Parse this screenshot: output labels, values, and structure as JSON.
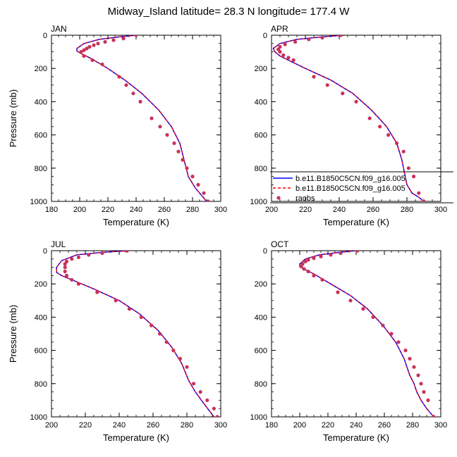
{
  "title": "Midway_Island  latitude= 28.3 N longitude= 177.4 W",
  "legend": {
    "items": [
      {
        "label": "b.e11.B1850C5CN.f09_g16.005",
        "color": "#0000ff",
        "style": "solid"
      },
      {
        "label": "b.e11.B1850C5CN.f09_g16.005",
        "color": "#ff0000",
        "style": "dashed"
      },
      {
        "label": "raobs",
        "color": "#c8325a",
        "style": "marker"
      }
    ]
  },
  "chart_data": [
    {
      "type": "line",
      "panel": "JAN",
      "xlabel": "Temperature (K)",
      "ylabel": "Pressure (mb)",
      "xlim": [
        180,
        300
      ],
      "xticks": [
        "180",
        "200",
        "220",
        "240",
        "260",
        "280",
        "300"
      ],
      "ylim": [
        1000,
        0
      ],
      "yticks": [
        "0",
        "200",
        "400",
        "600",
        "800",
        "1000"
      ],
      "series": [
        {
          "name": "b.e11.B1850C5CN.f09_g16.005",
          "color": "#0000ff",
          "style": "solid",
          "x": [
            240,
            228,
            214,
            203,
            198,
            198,
            201,
            208,
            220,
            232,
            244,
            256,
            265,
            271,
            274,
            277,
            282,
            287,
            290
          ],
          "y": [
            0,
            10,
            25,
            50,
            80,
            95,
            110,
            140,
            200,
            270,
            350,
            450,
            550,
            650,
            750,
            850,
            920,
            970,
            1000
          ]
        },
        {
          "name": "b.e11.B1850C5CN.f09_g16.005",
          "color": "#ff0000",
          "style": "dashed",
          "x": [
            240,
            228,
            214,
            203,
            198,
            198,
            201,
            208,
            220,
            232,
            244,
            256,
            265,
            271,
            274,
            277,
            282,
            287,
            290
          ],
          "y": [
            0,
            10,
            25,
            50,
            80,
            95,
            110,
            140,
            200,
            270,
            350,
            450,
            550,
            650,
            750,
            850,
            920,
            970,
            1000
          ]
        },
        {
          "name": "raobs",
          "color": "#c8325a",
          "style": "marker",
          "x": [
            240,
            231,
            224,
            218,
            213,
            210,
            207,
            205,
            203,
            201,
            203,
            209,
            216,
            228,
            233,
            238,
            243,
            251,
            257,
            262,
            267,
            270,
            273,
            276,
            280,
            284,
            288,
            291
          ],
          "y": [
            0,
            20,
            30,
            40,
            50,
            60,
            70,
            80,
            90,
            100,
            125,
            150,
            175,
            250,
            300,
            350,
            400,
            500,
            550,
            600,
            650,
            700,
            750,
            800,
            850,
            900,
            950,
            1000
          ]
        }
      ]
    },
    {
      "type": "line",
      "panel": "APR",
      "xlabel": "Temperature (K)",
      "ylabel": "",
      "xlim": [
        200,
        300
      ],
      "xticks": [
        "200",
        "220",
        "240",
        "260",
        "280",
        "300"
      ],
      "ylim": [
        1000,
        0
      ],
      "yticks": [
        "0",
        "200",
        "400",
        "600",
        "800",
        "1000"
      ],
      "series": [
        {
          "name": "b.e11.B1850C5CN.f09_g16.005",
          "color": "#0000ff",
          "style": "solid",
          "x": [
            243,
            230,
            215,
            205,
            201,
            202,
            205,
            210,
            220,
            235,
            248,
            259,
            268,
            274,
            277,
            279,
            280,
            283,
            287,
            290
          ],
          "y": [
            0,
            10,
            25,
            50,
            80,
            100,
            125,
            150,
            200,
            270,
            350,
            450,
            550,
            650,
            750,
            850,
            900,
            950,
            975,
            1000
          ]
        },
        {
          "name": "b.e11.B1850C5CN.f09_g16.005",
          "color": "#ff0000",
          "style": "dashed",
          "x": [
            243,
            230,
            215,
            205,
            201,
            202,
            205,
            210,
            220,
            235,
            248,
            259,
            268,
            274,
            277,
            279,
            280,
            283,
            287,
            290
          ],
          "y": [
            0,
            10,
            25,
            50,
            80,
            100,
            125,
            150,
            200,
            270,
            350,
            450,
            550,
            650,
            750,
            850,
            900,
            950,
            975,
            1000
          ]
        },
        {
          "name": "raobs",
          "color": "#c8325a",
          "style": "marker",
          "x": [
            241,
            230,
            222,
            214,
            208,
            205,
            204,
            205,
            207,
            210,
            213,
            225,
            233,
            242,
            250,
            258,
            264,
            269,
            274,
            278,
            281,
            284,
            287,
            290
          ],
          "y": [
            0,
            15,
            25,
            40,
            55,
            70,
            85,
            100,
            120,
            135,
            150,
            250,
            300,
            350,
            400,
            500,
            550,
            600,
            650,
            700,
            800,
            850,
            950,
            1000
          ]
        }
      ]
    },
    {
      "type": "line",
      "panel": "JUL",
      "xlabel": "Temperature (K)",
      "ylabel": "Pressure (mb)",
      "xlim": [
        200,
        300
      ],
      "xticks": [
        "200",
        "220",
        "240",
        "260",
        "280",
        "300"
      ],
      "ylim": [
        1000,
        0
      ],
      "yticks": [
        "0",
        "200",
        "400",
        "600",
        "800",
        "1000"
      ],
      "series": [
        {
          "name": "b.e11.B1850C5CN.f09_g16.005",
          "color": "#0000ff",
          "style": "solid",
          "x": [
            246,
            230,
            215,
            206,
            203,
            203,
            206,
            212,
            225,
            240,
            252,
            263,
            271,
            277,
            281,
            285,
            290,
            296
          ],
          "y": [
            0,
            10,
            25,
            60,
            100,
            130,
            150,
            175,
            230,
            300,
            380,
            480,
            580,
            680,
            780,
            850,
            920,
            1000
          ]
        },
        {
          "name": "b.e11.B1850C5CN.f09_g16.005",
          "color": "#ff0000",
          "style": "dashed",
          "x": [
            246,
            230,
            215,
            206,
            203,
            203,
            206,
            212,
            225,
            240,
            252,
            263,
            271,
            277,
            281,
            285,
            290,
            296
          ],
          "y": [
            0,
            10,
            25,
            60,
            100,
            130,
            150,
            175,
            230,
            300,
            380,
            480,
            580,
            680,
            780,
            850,
            920,
            1000
          ]
        },
        {
          "name": "raobs",
          "color": "#c8325a",
          "style": "marker",
          "x": [
            244,
            230,
            222,
            216,
            212,
            209,
            208,
            208,
            208,
            209,
            212,
            216,
            227,
            238,
            246,
            253,
            259,
            264,
            268,
            272,
            276,
            280,
            284,
            288,
            292,
            296,
            298
          ],
          "y": [
            0,
            15,
            25,
            40,
            50,
            65,
            80,
            100,
            125,
            150,
            175,
            200,
            250,
            300,
            350,
            400,
            450,
            500,
            550,
            600,
            650,
            700,
            800,
            850,
            900,
            950,
            1000
          ]
        }
      ]
    },
    {
      "type": "line",
      "panel": "OCT",
      "xlabel": "Temperature (K)",
      "ylabel": "",
      "xlim": [
        180,
        300
      ],
      "xticks": [
        "180",
        "200",
        "220",
        "240",
        "260",
        "280",
        "300"
      ],
      "ylim": [
        1000,
        0
      ],
      "yticks": [
        "0",
        "200",
        "400",
        "600",
        "800",
        "1000"
      ],
      "series": [
        {
          "name": "b.e11.B1850C5CN.f09_g16.005",
          "color": "#0000ff",
          "style": "solid",
          "x": [
            240,
            228,
            214,
            204,
            200,
            200,
            203,
            210,
            222,
            236,
            248,
            259,
            268,
            274,
            278,
            281,
            283,
            286,
            290,
            295
          ],
          "y": [
            0,
            10,
            25,
            50,
            80,
            95,
            110,
            140,
            200,
            270,
            350,
            450,
            550,
            650,
            750,
            800,
            850,
            900,
            950,
            1000
          ]
        },
        {
          "name": "b.e11.B1850C5CN.f09_g16.005",
          "color": "#ff0000",
          "style": "dashed",
          "x": [
            240,
            228,
            214,
            204,
            200,
            200,
            203,
            210,
            222,
            236,
            248,
            259,
            268,
            274,
            278,
            281,
            283,
            286,
            290,
            295
          ],
          "y": [
            0,
            10,
            25,
            50,
            80,
            95,
            110,
            140,
            200,
            270,
            350,
            450,
            550,
            650,
            750,
            800,
            850,
            900,
            950,
            1000
          ]
        },
        {
          "name": "raobs",
          "color": "#c8325a",
          "style": "marker",
          "x": [
            241,
            229,
            222,
            215,
            210,
            206,
            204,
            202,
            201,
            203,
            206,
            210,
            216,
            227,
            236,
            245,
            252,
            259,
            265,
            270,
            275,
            278,
            281,
            284,
            286,
            288,
            291,
            295
          ],
          "y": [
            0,
            15,
            25,
            35,
            45,
            55,
            65,
            80,
            95,
            110,
            125,
            150,
            175,
            250,
            300,
            350,
            400,
            450,
            500,
            550,
            600,
            650,
            700,
            750,
            800,
            850,
            900,
            1000
          ]
        }
      ]
    }
  ]
}
